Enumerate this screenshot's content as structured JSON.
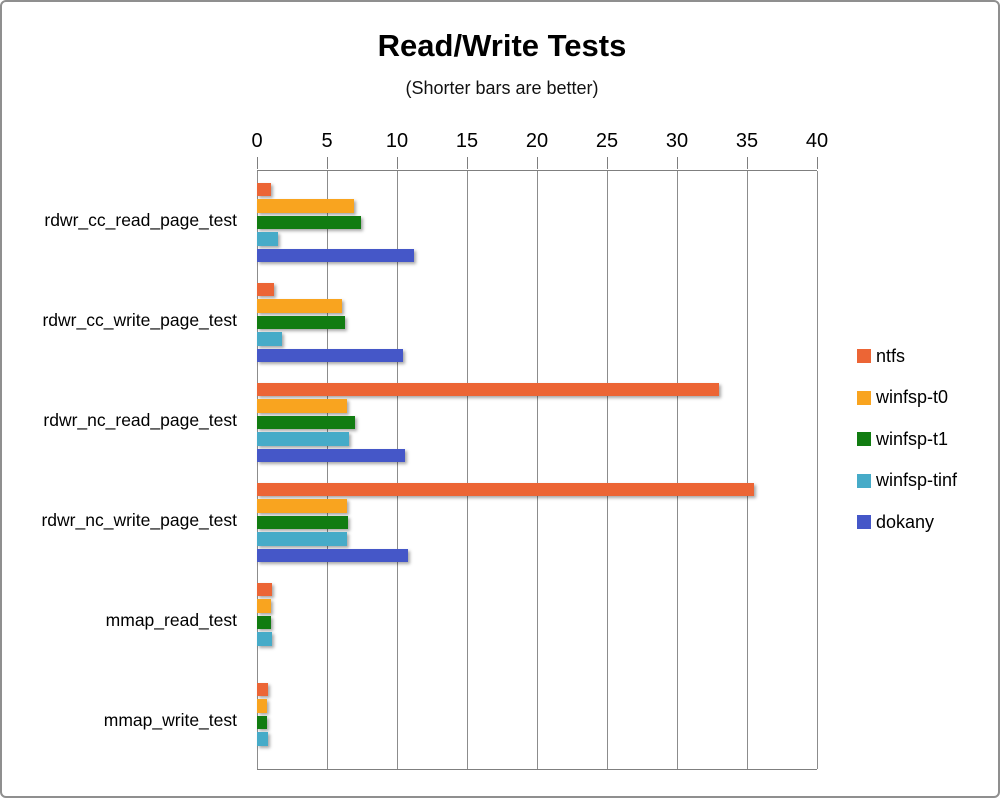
{
  "title": "Read/Write Tests",
  "subtitle": "(Shorter bars are better)",
  "chart_data": {
    "type": "bar",
    "orientation": "horizontal",
    "title": "Read/Write Tests",
    "subtitle": "(Shorter bars are better)",
    "xlabel": "",
    "ylabel": "",
    "xlim": [
      0,
      40
    ],
    "xticks": [
      0,
      5,
      10,
      15,
      20,
      25,
      30,
      35,
      40
    ],
    "grid": true,
    "legend_position": "right",
    "categories": [
      "rdwr_cc_read_page_test",
      "rdwr_cc_write_page_test",
      "rdwr_nc_read_page_test",
      "rdwr_nc_write_page_test",
      "mmap_read_test",
      "mmap_write_test"
    ],
    "series": [
      {
        "name": "ntfs",
        "color": "#EC6535",
        "values": [
          1.0,
          1.2,
          33.0,
          35.5,
          1.1,
          0.8
        ]
      },
      {
        "name": "winfsp-t0",
        "color": "#F9A41F",
        "values": [
          6.9,
          6.1,
          6.4,
          6.4,
          1.0,
          0.7
        ]
      },
      {
        "name": "winfsp-t1",
        "color": "#117C11",
        "values": [
          7.4,
          6.3,
          7.0,
          6.5,
          1.0,
          0.7
        ]
      },
      {
        "name": "winfsp-tinf",
        "color": "#46ABC8",
        "values": [
          1.5,
          1.8,
          6.6,
          6.4,
          1.1,
          0.8
        ]
      },
      {
        "name": "dokany",
        "color": "#4557C8",
        "values": [
          11.2,
          10.4,
          10.6,
          10.8,
          0,
          0
        ]
      }
    ]
  },
  "layout_colors": {
    "gridline": "#8c8c8c",
    "axis": "#7f7f7f",
    "frame_border": "#8f8f8f",
    "text": "#000000"
  }
}
